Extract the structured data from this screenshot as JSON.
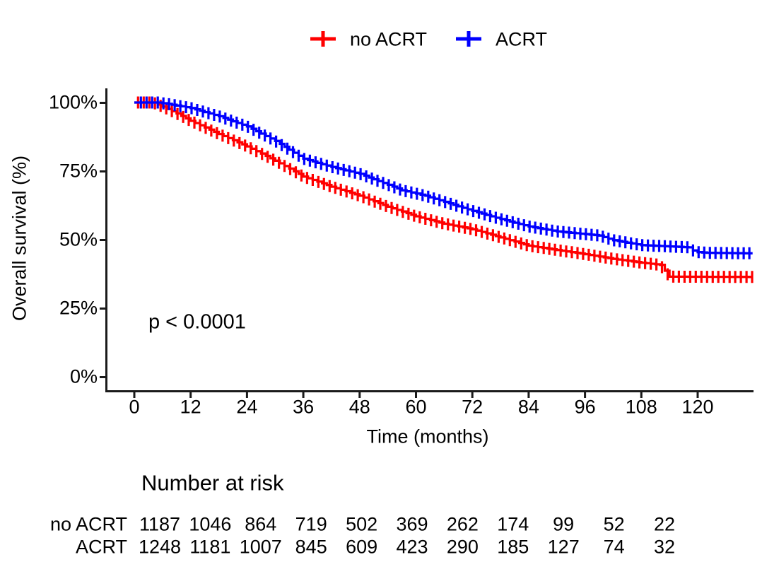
{
  "chart_data": {
    "type": "line",
    "subtype": "kaplan-meier-step",
    "title": "",
    "xlabel": "Time (months)",
    "ylabel": "Overall survival (%)",
    "xlim": [
      0,
      132
    ],
    "ylim": [
      0,
      100
    ],
    "grid": false,
    "x_ticks": [
      0,
      12,
      24,
      36,
      48,
      60,
      72,
      84,
      96,
      108,
      120
    ],
    "x_tick_labels": [
      "0",
      "12",
      "24",
      "36",
      "48",
      "60",
      "72",
      "84",
      "96",
      "108",
      "120"
    ],
    "y_ticks": [
      0,
      25,
      50,
      75,
      100
    ],
    "y_tick_labels": [
      "0%",
      "25%",
      "50%",
      "75%",
      "100%"
    ],
    "annotation": "p < 0.0001",
    "legend": {
      "position": "top",
      "entries": [
        {
          "name": "no ACRT",
          "color": "#ff0000"
        },
        {
          "name": "ACRT",
          "color": "#0000ff"
        }
      ]
    },
    "series": [
      {
        "name": "no ACRT",
        "color": "#ff0000",
        "note": "survival % estimated from pixels; step curve with dense censor + marks",
        "points_pct": [
          [
            0,
            100
          ],
          [
            4,
            100
          ],
          [
            6,
            98.5
          ],
          [
            9,
            96
          ],
          [
            12,
            93.3
          ],
          [
            18,
            88.5
          ],
          [
            24,
            84
          ],
          [
            30,
            78.8
          ],
          [
            36,
            73
          ],
          [
            42,
            69.3
          ],
          [
            48,
            66
          ],
          [
            54,
            62
          ],
          [
            60,
            58.5
          ],
          [
            66,
            55.8
          ],
          [
            72,
            53.8
          ],
          [
            78,
            50.8
          ],
          [
            84,
            47.8
          ],
          [
            90,
            46.2
          ],
          [
            96,
            44.7
          ],
          [
            102,
            43
          ],
          [
            108,
            41.6
          ],
          [
            112,
            40.8
          ],
          [
            114,
            36.5
          ],
          [
            131.7,
            36.4
          ]
        ]
      },
      {
        "name": "ACRT",
        "color": "#0000ff",
        "note": "survival % estimated from pixels; step curve with dense censor + marks",
        "points_pct": [
          [
            0,
            100
          ],
          [
            5,
            100
          ],
          [
            7,
            99.5
          ],
          [
            12,
            98
          ],
          [
            18,
            95
          ],
          [
            24,
            91.3
          ],
          [
            30,
            86
          ],
          [
            36,
            79.5
          ],
          [
            42,
            76.5
          ],
          [
            48,
            74
          ],
          [
            54,
            70
          ],
          [
            57,
            68
          ],
          [
            62,
            66
          ],
          [
            66,
            63.8
          ],
          [
            72,
            60.5
          ],
          [
            78,
            57.5
          ],
          [
            84,
            54.8
          ],
          [
            90,
            53
          ],
          [
            96,
            52
          ],
          [
            99,
            51.5
          ],
          [
            102,
            49.8
          ],
          [
            108,
            48
          ],
          [
            113,
            47.6
          ],
          [
            118,
            47.2
          ],
          [
            119.5,
            45.5
          ],
          [
            122,
            45.2
          ],
          [
            131.7,
            45
          ]
        ]
      }
    ],
    "risk_table": {
      "title": "Number at risk",
      "times": [
        0,
        12,
        24,
        36,
        48,
        60,
        72,
        84,
        96,
        108,
        120
      ],
      "rows": [
        {
          "name": "no ACRT",
          "counts": [
            "1187",
            "1046",
            "864",
            "719",
            "502",
            "369",
            "262",
            "174",
            "99",
            "52",
            "22"
          ]
        },
        {
          "name": "ACRT",
          "counts": [
            "1248",
            "1181",
            "1007",
            "845",
            "609",
            "423",
            "290",
            "185",
            "127",
            "74",
            "32"
          ]
        }
      ]
    }
  }
}
